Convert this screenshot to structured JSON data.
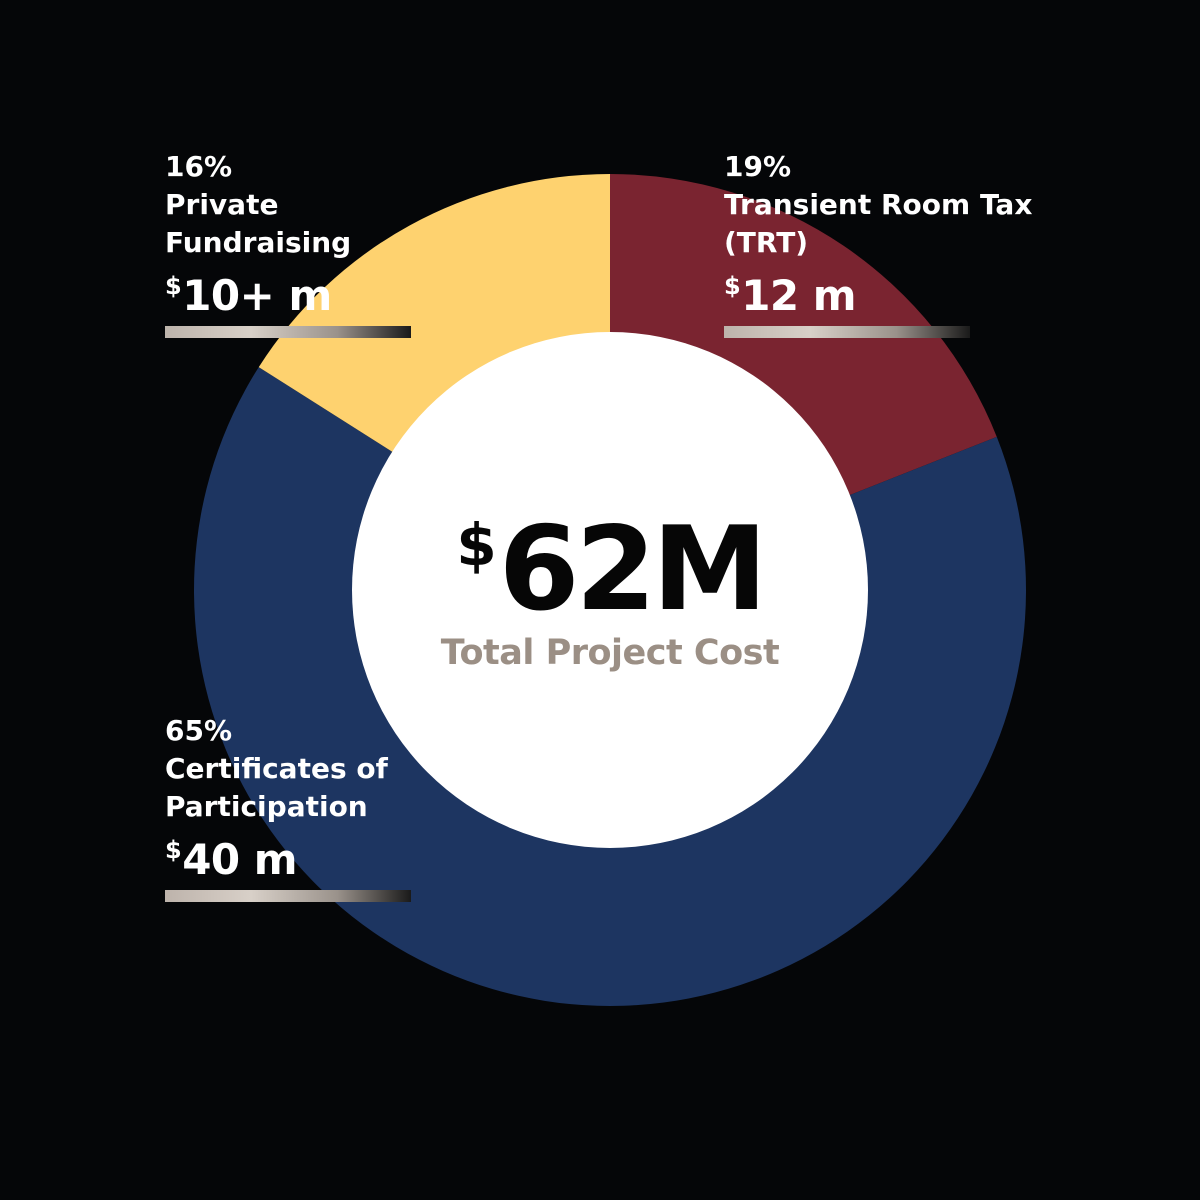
{
  "chart_data": {
    "type": "pie",
    "categories": [
      "Private Fundraising",
      "Transient Room Tax (TRT)",
      "Certificates of Participation"
    ],
    "values": [
      16,
      19,
      65
    ],
    "percent_labels": [
      "16%",
      "19%",
      "65%"
    ],
    "amount_labels": [
      "10+ m",
      "12 m",
      "40 m"
    ],
    "currency_symbol": "$",
    "colors": [
      "#fed26f",
      "#7a2430",
      "#1d3561"
    ],
    "center_value": "62M",
    "center_caption": "Total Project Cost",
    "donut": true,
    "legend": "none"
  },
  "labels": {
    "private": {
      "pct": "16%",
      "name_line1": "Private",
      "name_line2": "Fundraising",
      "amount": "10+ m"
    },
    "trt": {
      "pct": "19%",
      "name_line1": "Transient Room Tax",
      "name_line2": "(TRT)",
      "amount": "12 m"
    },
    "cop": {
      "pct": "65%",
      "name_line1": "Certificates of",
      "name_line2": "Participation",
      "amount": "40 m"
    }
  }
}
